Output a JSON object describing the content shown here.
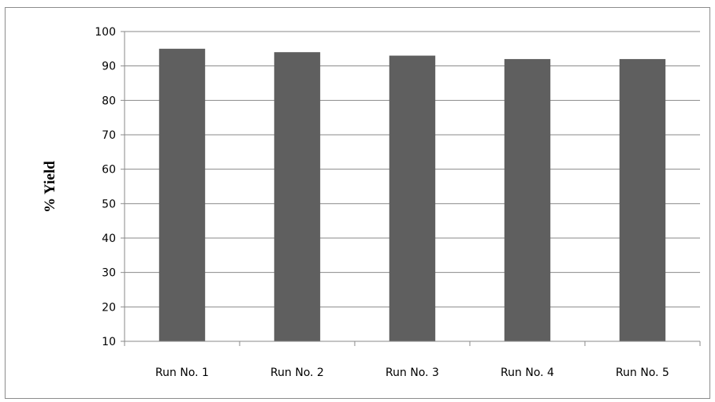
{
  "chart_data": {
    "type": "bar",
    "title": "",
    "xlabel": "",
    "ylabel": "% Yield",
    "categories": [
      "Run No. 1",
      "Run No. 2",
      "Run No. 3",
      "Run No. 4",
      "Run No. 5"
    ],
    "values": [
      95,
      94,
      93,
      92,
      92
    ],
    "ylim": [
      10,
      100
    ],
    "yticks": [
      10,
      20,
      30,
      40,
      50,
      60,
      70,
      80,
      90,
      100
    ],
    "grid": true,
    "legend": "none",
    "colors": {
      "bar": "#5f5f5f",
      "grid": "#8a8a8a",
      "axis": "#8a8a8a"
    }
  }
}
